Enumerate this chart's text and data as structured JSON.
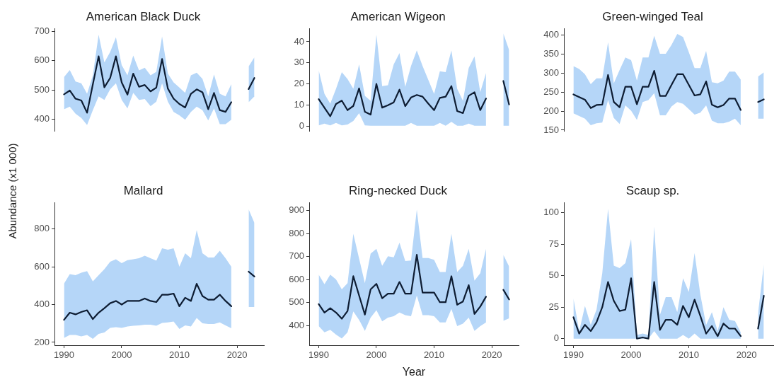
{
  "chart_data": [
    {
      "type": "line",
      "title": "American Black Duck",
      "ylabel": "Abundance (x1 000)",
      "x": [
        1990,
        1991,
        1992,
        1993,
        1994,
        1995,
        1996,
        1997,
        1998,
        1999,
        2000,
        2001,
        2002,
        2003,
        2004,
        2005,
        2006,
        2007,
        2008,
        2009,
        2010,
        2011,
        2012,
        2013,
        2014,
        2015,
        2016,
        2017,
        2018,
        2019,
        2020,
        2021,
        2022,
        2023
      ],
      "series": [
        {
          "color": "#0e1d33",
          "values": [
            485,
            498,
            470,
            464,
            422,
            519,
            615,
            509,
            541,
            615,
            526,
            484,
            556,
            511,
            517,
            495,
            508,
            606,
            505,
            470,
            452,
            440,
            487,
            502,
            492,
            434,
            490,
            431,
            425,
            458,
            null,
            null,
            503,
            541
          ],
          "lower": [
            434,
            443,
            419,
            404,
            380,
            431,
            478,
            466,
            502,
            523,
            466,
            437,
            490,
            466,
            469,
            445,
            460,
            523,
            460,
            425,
            413,
            398,
            425,
            443,
            431,
            396,
            437,
            383,
            383,
            398,
            null,
            null,
            458,
            478
          ],
          "upper": [
            544,
            568,
            529,
            523,
            487,
            550,
            689,
            594,
            630,
            680,
            585,
            550,
            618,
            567,
            576,
            550,
            562,
            683,
            556,
            526,
            508,
            490,
            550,
            559,
            538,
            478,
            553,
            487,
            478,
            520,
            null,
            null,
            580,
            612
          ]
        }
      ],
      "ylim": [
        360,
        710
      ],
      "yticks": [
        400,
        500,
        600,
        700
      ],
      "tick_labels": "y"
    },
    {
      "type": "line",
      "title": "American Wigeon",
      "x": [
        1990,
        1991,
        1992,
        1993,
        1994,
        1995,
        1996,
        1997,
        1998,
        1999,
        2000,
        2001,
        2002,
        2003,
        2004,
        2005,
        2006,
        2007,
        2008,
        2009,
        2010,
        2011,
        2012,
        2013,
        2014,
        2015,
        2016,
        2017,
        2018,
        2019,
        2020,
        2021,
        2022,
        2023
      ],
      "series": [
        {
          "color": "#0e1d33",
          "values": [
            12.8,
            8.7,
            4.7,
            10.5,
            12.1,
            7.6,
            9.6,
            17.9,
            6.8,
            5.5,
            20.0,
            8.8,
            9.9,
            11.3,
            17.3,
            9.5,
            13.6,
            14.8,
            14.0,
            10.7,
            7.6,
            13.4,
            14.0,
            19.0,
            7.2,
            6.2,
            14.4,
            16.1,
            7.6,
            13.1,
            null,
            null,
            21.4,
            10.3
          ],
          "lower": [
            0.4,
            1.2,
            0.4,
            1.6,
            0.4,
            0.8,
            2.5,
            6.2,
            0.4,
            0.2,
            0.2,
            0.2,
            0.2,
            0.2,
            0.2,
            0.2,
            1.6,
            0.2,
            0.2,
            0.2,
            0.2,
            1.6,
            0.2,
            2.1,
            0.2,
            0.2,
            1.2,
            0.2,
            0.2,
            0.2,
            null,
            null,
            0.2,
            0.2
          ],
          "upper": [
            26.4,
            15.3,
            10.7,
            17.7,
            25.6,
            22.3,
            17.7,
            29.3,
            14.4,
            12.0,
            43.3,
            19.0,
            19.4,
            29.3,
            34.6,
            18.6,
            28.5,
            35.9,
            28.5,
            21.9,
            15.3,
            26.0,
            25.6,
            35.9,
            17.7,
            12.0,
            27.6,
            33.0,
            16.1,
            25.2,
            null,
            null,
            43.9,
            36
          ]
        }
      ],
      "ylim": [
        -2.2,
        46.2
      ],
      "yticks": [
        0,
        10,
        20,
        30,
        40
      ],
      "tick_labels": "y"
    },
    {
      "type": "line",
      "title": "Green-winged Teal",
      "x": [
        1990,
        1991,
        1992,
        1993,
        1994,
        1995,
        1996,
        1997,
        1998,
        1999,
        2000,
        2001,
        2002,
        2003,
        2004,
        2005,
        2006,
        2007,
        2008,
        2009,
        2010,
        2011,
        2012,
        2013,
        2014,
        2015,
        2016,
        2017,
        2018,
        2019,
        2020,
        2021,
        2022,
        2023
      ],
      "series": [
        {
          "color": "#0e1d33",
          "values": [
            244,
            237,
            230,
            208,
            216,
            217,
            295,
            224,
            210,
            264,
            264,
            218,
            264,
            264,
            306,
            240,
            240,
            269,
            297,
            297,
            269,
            241,
            244,
            278,
            217,
            210,
            216,
            233,
            233,
            203,
            null,
            null,
            224,
            231
          ],
          "lower": [
            194,
            187,
            180,
            163,
            168,
            170,
            229,
            182,
            166,
            215,
            201,
            177,
            224,
            229,
            247,
            189,
            189,
            212,
            224,
            219,
            205,
            191,
            196,
            215,
            175,
            168,
            168,
            172,
            180,
            163,
            null,
            null,
            180,
            180
          ],
          "upper": [
            318,
            311,
            297,
            271,
            286,
            286,
            381,
            273,
            308,
            341,
            334,
            280,
            341,
            341,
            398,
            351,
            351,
            374,
            403,
            395,
            355,
            313,
            313,
            358,
            276,
            273,
            280,
            304,
            304,
            283,
            null,
            null,
            291,
            302
          ]
        }
      ],
      "ylim": [
        148,
        417
      ],
      "yticks": [
        150,
        200,
        250,
        300,
        350,
        400
      ],
      "tick_labels": "y"
    },
    {
      "type": "line",
      "title": "Mallard",
      "x": [
        1990,
        1991,
        1992,
        1993,
        1994,
        1995,
        1996,
        1997,
        1998,
        1999,
        2000,
        2001,
        2002,
        2003,
        2004,
        2005,
        2006,
        2007,
        2008,
        2009,
        2010,
        2011,
        2012,
        2013,
        2014,
        2015,
        2016,
        2017,
        2018,
        2019,
        2020,
        2021,
        2022,
        2023
      ],
      "series": [
        {
          "color": "#0e1d33",
          "values": [
            319,
            357,
            348,
            361,
            370,
            323,
            357,
            381,
            407,
            419,
            400,
            419,
            419,
            419,
            432,
            419,
            413,
            452,
            452,
            458,
            391,
            436,
            419,
            510,
            445,
            426,
            426,
            452,
            419,
            391,
            null,
            null,
            574,
            548
          ],
          "lower": [
            223,
            239,
            239,
            232,
            239,
            219,
            245,
            252,
            277,
            280,
            277,
            284,
            288,
            290,
            293,
            293,
            288,
            303,
            306,
            310,
            271,
            290,
            284,
            329,
            301,
            297,
            297,
            306,
            290,
            275,
            null,
            null,
            387,
            387
          ],
          "upper": [
            510,
            561,
            555,
            568,
            577,
            523,
            555,
            587,
            626,
            639,
            619,
            635,
            639,
            645,
            658,
            645,
            632,
            697,
            690,
            697,
            600,
            671,
            645,
            794,
            671,
            649,
            649,
            684,
            645,
            600,
            null,
            null,
            903,
            832
          ]
        }
      ],
      "xlim": [
        1988.35,
        2024.65
      ],
      "xticks": [
        1990,
        2000,
        2010,
        2020
      ],
      "ylim": [
        185,
        939
      ],
      "yticks": [
        200,
        400,
        600,
        800
      ]
    },
    {
      "type": "line",
      "title": "Ring-necked Duck",
      "xlabel": "Year",
      "x": [
        1990,
        1991,
        1992,
        1993,
        1994,
        1995,
        1996,
        1997,
        1998,
        1999,
        2000,
        2001,
        2002,
        2003,
        2004,
        2005,
        2006,
        2007,
        2008,
        2009,
        2010,
        2011,
        2012,
        2013,
        2014,
        2015,
        2016,
        2017,
        2018,
        2019,
        2020,
        2021,
        2022,
        2023
      ],
      "series": [
        {
          "color": "#0e1d33",
          "values": [
            494,
            457,
            476,
            457,
            430,
            464,
            615,
            531,
            448,
            558,
            582,
            519,
            539,
            539,
            590,
            539,
            539,
            708,
            544,
            544,
            544,
            502,
            502,
            615,
            491,
            505,
            576,
            451,
            483,
            526,
            null,
            null,
            556,
            514
          ],
          "lower": [
            398,
            371,
            382,
            361,
            344,
            371,
            462,
            425,
            377,
            435,
            467,
            419,
            435,
            441,
            457,
            446,
            441,
            531,
            446,
            446,
            441,
            414,
            414,
            473,
            398,
            409,
            435,
            377,
            398,
            414,
            null,
            null,
            421,
            432
          ],
          "upper": [
            622,
            580,
            622,
            601,
            558,
            585,
            799,
            692,
            585,
            713,
            734,
            660,
            702,
            697,
            761,
            681,
            683,
            905,
            694,
            694,
            686,
            633,
            633,
            799,
            633,
            660,
            734,
            596,
            628,
            734,
            null,
            null,
            708,
            657
          ]
        }
      ],
      "xlim": [
        1988.35,
        2024.65
      ],
      "xticks": [
        1990,
        2000,
        2010,
        2020
      ],
      "ylim": [
        315,
        935
      ],
      "yticks": [
        400,
        500,
        600,
        700,
        800,
        900
      ]
    },
    {
      "type": "line",
      "title": "Scaup sp.",
      "x": [
        1990,
        1991,
        1992,
        1993,
        1994,
        1995,
        1996,
        1997,
        1998,
        1999,
        2000,
        2001,
        2002,
        2003,
        2004,
        2005,
        2006,
        2007,
        2008,
        2009,
        2010,
        2011,
        2012,
        2013,
        2014,
        2015,
        2016,
        2017,
        2018,
        2019,
        2020,
        2021,
        2022,
        2023
      ],
      "series": [
        {
          "color": "#0e1d33",
          "values": [
            17,
            4,
            11,
            6,
            13,
            25,
            45,
            30,
            22,
            23,
            48,
            0,
            1,
            0,
            45,
            7,
            15,
            15,
            11,
            26,
            17,
            31,
            18,
            4,
            10,
            2,
            12,
            8,
            8,
            2,
            null,
            null,
            8,
            34
          ],
          "lower": [
            0,
            0,
            0,
            0,
            0,
            0,
            0,
            0,
            0,
            0,
            0,
            0,
            0,
            0,
            6,
            0,
            0,
            0,
            0,
            3,
            0,
            4,
            0,
            0,
            0,
            0,
            0,
            0,
            0,
            0,
            null,
            null,
            0,
            0
          ],
          "upper": [
            32,
            6,
            26,
            11,
            23,
            52,
            103,
            58,
            56,
            60,
            79,
            3,
            4,
            3,
            89,
            19,
            33,
            33,
            21,
            48,
            37,
            68,
            35,
            11,
            21,
            6,
            25,
            15,
            14,
            5,
            null,
            null,
            20,
            59
          ]
        }
      ],
      "xlim": [
        1988.35,
        2024.65
      ],
      "xticks": [
        1990,
        2000,
        2010,
        2020
      ],
      "ylim": [
        -5.2,
        108
      ],
      "yticks": [
        0,
        25,
        50,
        75,
        100
      ]
    }
  ]
}
